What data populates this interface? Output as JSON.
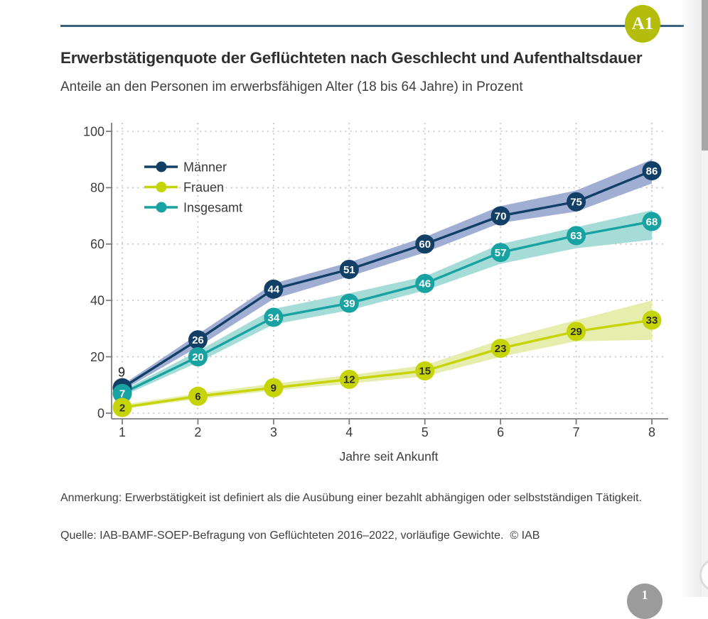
{
  "page": {
    "badge": "A1",
    "note": "Anmerkung: Erwerbstätigkeit ist definiert als die Ausübung einer bezahlt abhängigen oder selbstständigen Tätigkeit.",
    "source": "Quelle: IAB-BAMF-SOEP-Befragung von Geflüchteten 2016–2022, vorläufige Gewichte.  © IAB",
    "page_number": "1"
  },
  "colors": {
    "top_rule": "#39617f",
    "badge_bg": "#b4bd0a",
    "grid": "#bdbdbd",
    "axis": "#7d7d7d",
    "tick_text": "#3d3d3d",
    "legend_text": "#3a3a3a",
    "outside_label_text": "#1a1a1a"
  },
  "chart_data": {
    "type": "line",
    "title": "Erwerbstätigenquote der Geflüchteten nach Geschlecht und Aufenthaltsdauer",
    "subtitle": "Anteile an den Personen im erwerbsfähigen Alter (18 bis 64 Jahre) in Prozent",
    "xlabel": "Jahre seit Ankunft",
    "x": [
      1,
      2,
      3,
      4,
      5,
      6,
      7,
      8
    ],
    "ylim": [
      0,
      100
    ],
    "yticks": [
      0,
      20,
      40,
      60,
      80,
      100
    ],
    "grid": true,
    "grid_style": "dotted",
    "legend_position": "top-left",
    "series": [
      {
        "name": "Männer",
        "color": "#123f66",
        "band_color": "#a0aed3",
        "label_color": "#ffffff",
        "values": [
          9,
          26,
          44,
          51,
          60,
          70,
          75,
          86
        ],
        "band_low": [
          8,
          23.5,
          40.5,
          48.5,
          57,
          67.5,
          71.5,
          81.5
        ],
        "band_high": [
          10,
          28,
          46,
          53.5,
          62.5,
          73.5,
          79,
          90
        ]
      },
      {
        "name": "Frauen",
        "color": "#c6d405",
        "band_color": "#e6edad",
        "label_color": "#2d2d2d",
        "values": [
          2,
          6,
          9,
          12,
          15,
          23,
          29,
          33
        ],
        "band_low": [
          1.5,
          5,
          8,
          10.5,
          13,
          20,
          25.5,
          26
        ],
        "band_high": [
          3,
          7,
          10.5,
          13.5,
          17,
          26,
          33,
          40
        ]
      },
      {
        "name": "Insgesamt",
        "color": "#18a2a2",
        "band_color": "#a5dcd8",
        "label_color": "#ffffff",
        "values": [
          7,
          20,
          34,
          39,
          46,
          57,
          63,
          68
        ],
        "band_low": [
          6,
          18,
          31.5,
          36.5,
          43.5,
          53,
          58.5,
          61.5
        ],
        "band_high": [
          8,
          22,
          37,
          42.5,
          48.5,
          60,
          66,
          72
        ]
      }
    ],
    "outside_labels": [
      {
        "series_index": 0,
        "point_index": 0
      }
    ]
  }
}
